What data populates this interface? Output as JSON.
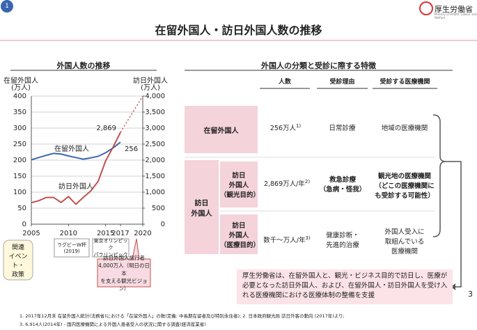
{
  "header": {
    "page_number": "1",
    "ministry": "厚生労働省",
    "ministry_en": "Ministry of Health, Labour and Welfare",
    "title": "在留外国人・訪日外国人数の推移"
  },
  "chart_data": {
    "type": "line",
    "title": "外国人数の推移",
    "ylabel": [
      "在留外国人",
      "(万人)"
    ],
    "y2label": [
      "訪日外国人",
      "(万人)"
    ],
    "x": [
      2005,
      2006,
      2007,
      2008,
      2009,
      2010,
      2011,
      2012,
      2013,
      2014,
      2015,
      2016,
      2017
    ],
    "xlim": [
      2005,
      2020
    ],
    "xticks": [
      2005,
      2010,
      2015,
      2017,
      2020
    ],
    "ylim": [
      0,
      400
    ],
    "yticks": [
      0,
      50,
      100,
      150,
      200,
      250,
      300,
      350,
      400
    ],
    "y2lim": [
      0,
      4000
    ],
    "y2ticks": [
      0,
      500,
      {
        "value": 1000,
        "label": "1,000"
      },
      {
        "value": 1500,
        "label": "1,500"
      },
      {
        "value": 2000,
        "label": "2,000"
      },
      {
        "value": 2500,
        "label": "2,500"
      },
      {
        "value": 3000,
        "label": "3,000"
      },
      {
        "value": 3500,
        "label": "3,500"
      },
      {
        "value": 4000,
        "label": "4,000"
      }
    ],
    "grid": true,
    "series": [
      {
        "name": "在留外国人",
        "color": "#3a66b0",
        "values": [
          201,
          208,
          215,
          221,
          219,
          213,
          208,
          203,
          207,
          212,
          223,
          238,
          256
        ]
      },
      {
        "name": "訪日外国人",
        "color": "#c0504d",
        "axis": "y2",
        "values": [
          673,
          733,
          835,
          835,
          679,
          861,
          622,
          836,
          1036,
          1341,
          1974,
          2404,
          2869
        ],
        "value_labels": [
          null,
          null,
          null,
          null,
          null,
          null,
          null,
          null,
          null,
          null,
          null,
          null,
          "2,869"
        ]
      },
      {
        "color": "#c0504d",
        "axis": "y2",
        "dashed": true,
        "x": [
          2017,
          2020
        ],
        "values": [
          2869,
          4000
        ]
      }
    ]
  },
  "events": {
    "label": [
      "関連",
      "イベント・",
      "政策"
    ],
    "items": [
      [
        "ラグビーW杯",
        "(2019)"
      ],
      [
        "東京オリンピック",
        "パラリンピック"
      ]
    ],
    "callout": [
      "訪日外国人旅行者",
      "4,000万人（明日の日本",
      "を支える観光ビジョン）"
    ]
  },
  "classification": {
    "title": "外国人の分類と受診に際する特徴",
    "columns": [
      "人数",
      "受診理由",
      "受診する医療機関"
    ],
    "group_label": [
      "訪日",
      "外国人"
    ],
    "rows": [
      {
        "label": [
          "在留外国人"
        ],
        "count": "256万人",
        "note": "1)",
        "reason": [
          "日常診療"
        ],
        "facility": [
          "地域の医療機関"
        ]
      },
      {
        "label": [
          "訪日",
          "外国人",
          "（観光目的）"
        ],
        "count": "2,869万人/年",
        "note": "2)",
        "reason": [
          "救急診療",
          "（急病・怪我）"
        ],
        "facility": [
          "観光地の医療機関",
          "（どこの医療機関に",
          "も受診する可能性）"
        ]
      },
      {
        "label": [
          "訪日",
          "外国人",
          "（医療目的）"
        ],
        "count": "数千～万人/年",
        "note": "3)",
        "reason": [
          "健康診断・",
          "先進的治療"
        ],
        "facility": [
          "外国人受入に",
          "取組んでいる",
          "医療機関"
        ]
      }
    ],
    "summary": "厚生労働省は、在留外国人と、観光・ビジネス目的で訪日し、医療が必要となった訪日外国人、および、在留外国人・訪日外国人を受け入れる医療機関における医療体制の整備を支援"
  },
  "footnotes": [
    "1. 2017年12月末 在留外国人統計(法務省)における「在留外国人」の数(定義: 中長期在留者及び特別永住者); 2. 日本政府観光局 訪日外客の動向 (2017年)より;",
    "3. 6,914人(2014年) - 国内医療機関による外国人患者受入の状況に関する調査(経済産業省)"
  ],
  "page_number": "3"
}
